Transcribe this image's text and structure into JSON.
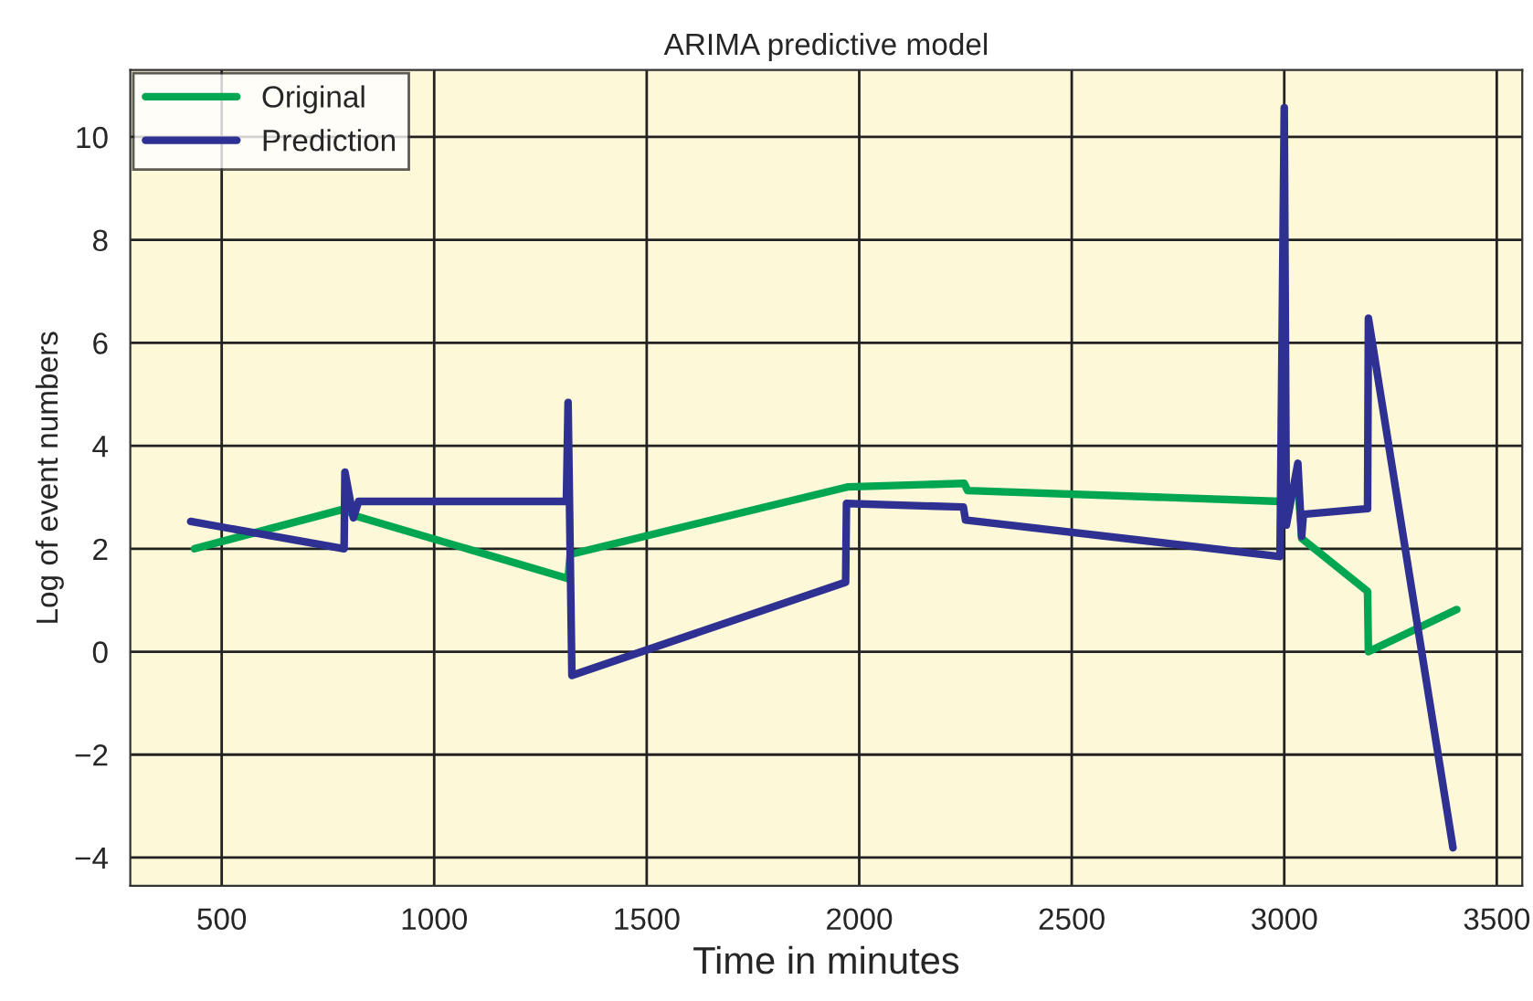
{
  "chart_data": {
    "type": "line",
    "title": "ARIMA predictive model",
    "xlabel": "Time in minutes",
    "ylabel": "Log of event numbers",
    "xlim": [
      285,
      3560
    ],
    "ylim": [
      -4.55,
      11.3
    ],
    "xticks": [
      500,
      1000,
      1500,
      2000,
      2500,
      3000,
      3500
    ],
    "yticks": [
      {
        "value": -4,
        "label": "−4"
      },
      {
        "value": -2,
        "label": "−2"
      },
      0,
      2,
      4,
      6,
      8,
      10
    ],
    "grid": true,
    "legend": "top left",
    "series": [
      {
        "name": "Original",
        "color": "#00a651",
        "x": [
          436,
          792,
          810,
          1315,
          1320,
          1972,
          2247,
          2255,
          2990,
          3005,
          3032,
          3041,
          3196,
          3198,
          3406
        ],
        "values": [
          2.0,
          2.78,
          2.65,
          1.42,
          1.89,
          3.2,
          3.27,
          3.13,
          2.92,
          2.85,
          3.3,
          2.2,
          1.17,
          0.0,
          0.82
        ]
      },
      {
        "name": "Prediction",
        "color": "#2e3192",
        "x": [
          427,
          788,
          790,
          810,
          822,
          1311,
          1315,
          1324,
          1968,
          1970,
          2245,
          2250,
          2990,
          3000,
          3005,
          3032,
          3041,
          3045,
          3196,
          3198,
          3397
        ],
        "values": [
          2.53,
          2.0,
          3.49,
          2.6,
          2.92,
          2.92,
          4.84,
          -0.46,
          1.35,
          2.88,
          2.81,
          2.56,
          1.85,
          10.57,
          2.46,
          3.66,
          2.24,
          2.67,
          2.78,
          6.48,
          -3.81
        ]
      }
    ]
  }
}
